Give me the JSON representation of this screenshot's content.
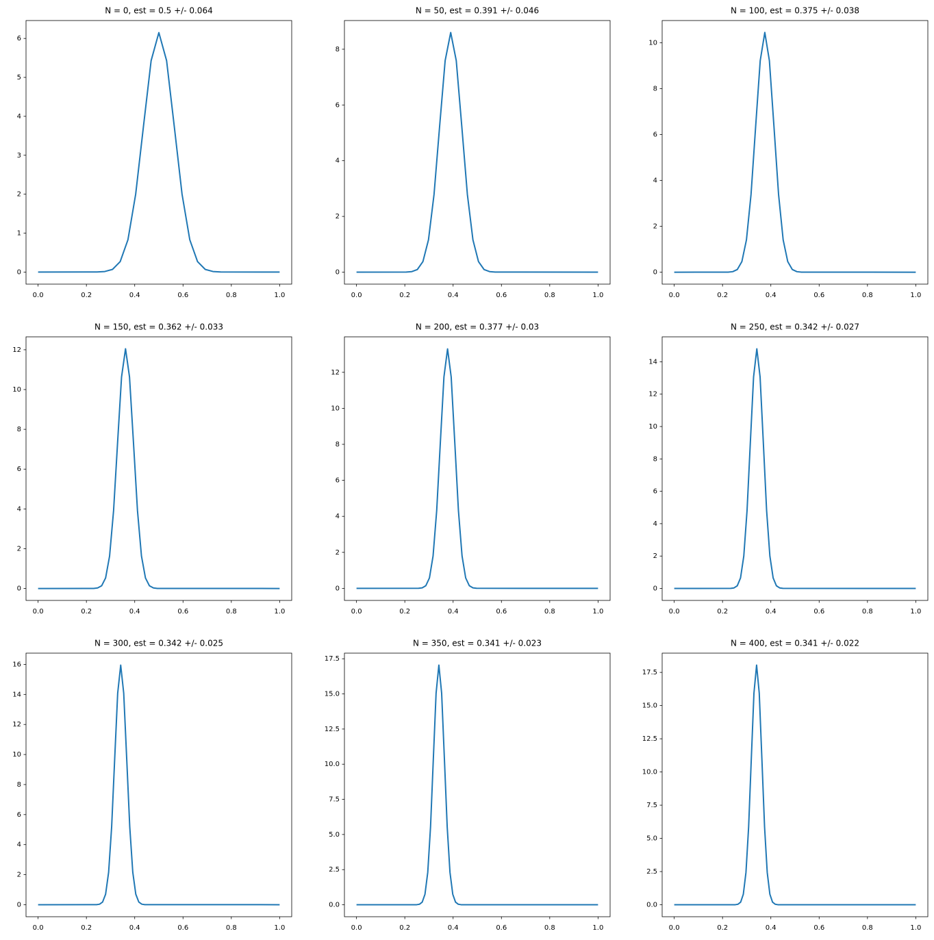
{
  "chart_data": [
    {
      "type": "line",
      "title": "N = 0, est = 0.5 +/- 0.064",
      "color": "#1f77b4",
      "x": [
        0,
        0.244,
        0.276,
        0.308,
        0.34,
        0.372,
        0.404,
        0.436,
        0.468,
        0.5,
        0.532,
        0.564,
        0.596,
        0.628,
        0.66,
        0.692,
        0.724,
        0.756,
        1
      ],
      "values": [
        0,
        0.002,
        0.014,
        0.068,
        0.27,
        0.83,
        2.0,
        3.73,
        5.43,
        6.15,
        5.43,
        3.73,
        2.0,
        0.83,
        0.27,
        0.068,
        0.014,
        0.002,
        0
      ],
      "xlim": [
        -0.05,
        1.05
      ],
      "ylim": [
        -0.31,
        6.46
      ],
      "xticks": [
        {
          "value": 0,
          "label": "0.0"
        },
        0.2,
        0.4,
        0.6,
        0.8,
        {
          "value": 1,
          "label": "1.0"
        }
      ],
      "yticks": [
        0,
        1,
        2,
        3,
        4,
        5,
        6
      ]
    },
    {
      "type": "line",
      "title": "N = 50, est = 0.391 +/- 0.046",
      "color": "#1f77b4",
      "x": [
        0,
        0.206,
        0.229,
        0.252,
        0.275,
        0.298,
        0.321,
        0.344,
        0.367,
        0.39,
        0.413,
        0.436,
        0.459,
        0.482,
        0.505,
        0.528,
        0.551,
        0.574,
        1
      ],
      "values": [
        0,
        0.003,
        0.019,
        0.095,
        0.38,
        1.16,
        2.79,
        5.22,
        7.59,
        8.6,
        7.59,
        5.22,
        2.79,
        1.16,
        0.38,
        0.095,
        0.019,
        0.003,
        0
      ],
      "xlim": [
        -0.05,
        1.05
      ],
      "ylim": [
        -0.43,
        9.03
      ],
      "xticks": [
        {
          "value": 0,
          "label": "0.0"
        },
        0.2,
        0.4,
        0.6,
        0.8,
        {
          "value": 1,
          "label": "1.0"
        }
      ],
      "yticks": [
        0,
        2,
        4,
        6,
        8
      ]
    },
    {
      "type": "line",
      "title": "N = 100, est = 0.375 +/- 0.038",
      "color": "#1f77b4",
      "x": [
        0,
        0.223,
        0.242,
        0.261,
        0.28,
        0.299,
        0.318,
        0.337,
        0.356,
        0.375,
        0.394,
        0.413,
        0.432,
        0.451,
        0.47,
        0.489,
        0.508,
        0.527,
        1
      ],
      "values": [
        0,
        0.003,
        0.023,
        0.116,
        0.46,
        1.41,
        3.39,
        6.34,
        9.22,
        10.45,
        9.22,
        6.34,
        3.39,
        1.41,
        0.46,
        0.116,
        0.023,
        0.003,
        0
      ],
      "xlim": [
        -0.05,
        1.05
      ],
      "ylim": [
        -0.52,
        10.97
      ],
      "xticks": [
        {
          "value": 0,
          "label": "0.0"
        },
        0.2,
        0.4,
        0.6,
        0.8,
        {
          "value": 1,
          "label": "1.0"
        }
      ],
      "yticks": [
        0,
        2,
        4,
        6,
        8,
        10
      ]
    },
    {
      "type": "line",
      "title": "N = 150, est = 0.362 +/- 0.033",
      "color": "#1f77b4",
      "x": [
        0,
        0.23,
        0.2465,
        0.263,
        0.2795,
        0.296,
        0.3125,
        0.329,
        0.3455,
        0.362,
        0.3785,
        0.395,
        0.4115,
        0.428,
        0.4445,
        0.461,
        0.4775,
        0.494,
        1
      ],
      "values": [
        0,
        0.004,
        0.027,
        0.134,
        0.53,
        1.63,
        3.91,
        7.31,
        10.63,
        12.05,
        10.63,
        7.31,
        3.91,
        1.63,
        0.53,
        0.134,
        0.027,
        0.004,
        0
      ],
      "xlim": [
        -0.05,
        1.05
      ],
      "ylim": [
        -0.6,
        12.65
      ],
      "xticks": [
        {
          "value": 0,
          "label": "0.0"
        },
        0.2,
        0.4,
        0.6,
        0.8,
        {
          "value": 1,
          "label": "1.0"
        }
      ],
      "yticks": [
        0,
        2,
        4,
        6,
        8,
        10,
        12
      ]
    },
    {
      "type": "line",
      "title": "N = 200, est = 0.377 +/- 0.03",
      "color": "#1f77b4",
      "x": [
        0,
        0.257,
        0.272,
        0.287,
        0.302,
        0.317,
        0.332,
        0.347,
        0.362,
        0.377,
        0.392,
        0.407,
        0.422,
        0.437,
        0.452,
        0.467,
        0.482,
        0.497,
        1
      ],
      "values": [
        0,
        0.004,
        0.029,
        0.148,
        0.58,
        1.8,
        4.32,
        8.07,
        11.74,
        13.3,
        11.74,
        8.07,
        4.32,
        1.8,
        0.58,
        0.148,
        0.029,
        0.004,
        0
      ],
      "xlim": [
        -0.05,
        1.05
      ],
      "ylim": [
        -0.67,
        13.97
      ],
      "xticks": [
        {
          "value": 0,
          "label": "0.0"
        },
        0.2,
        0.4,
        0.6,
        0.8,
        {
          "value": 1,
          "label": "1.0"
        }
      ],
      "yticks": [
        0,
        2,
        4,
        6,
        8,
        10,
        12
      ]
    },
    {
      "type": "line",
      "title": "N = 250, est = 0.342 +/- 0.027",
      "color": "#1f77b4",
      "x": [
        0,
        0.234,
        0.2475,
        0.261,
        0.2745,
        0.288,
        0.3015,
        0.315,
        0.3285,
        0.342,
        0.3555,
        0.369,
        0.3825,
        0.396,
        0.4095,
        0.423,
        0.4365,
        0.45,
        1
      ],
      "values": [
        0,
        0.004,
        0.033,
        0.164,
        0.65,
        2.0,
        4.81,
        8.98,
        13.06,
        14.8,
        13.06,
        8.98,
        4.81,
        2.0,
        0.65,
        0.164,
        0.033,
        0.004,
        0
      ],
      "xlim": [
        -0.05,
        1.05
      ],
      "ylim": [
        -0.74,
        15.54
      ],
      "xticks": [
        {
          "value": 0,
          "label": "0.0"
        },
        0.2,
        0.4,
        0.6,
        0.8,
        {
          "value": 1,
          "label": "1.0"
        }
      ],
      "yticks": [
        0,
        2,
        4,
        6,
        8,
        10,
        12,
        14
      ]
    },
    {
      "type": "line",
      "title": "N = 300, est = 0.342 +/- 0.025",
      "color": "#1f77b4",
      "x": [
        0,
        0.242,
        0.2545,
        0.267,
        0.2795,
        0.292,
        0.3045,
        0.317,
        0.3295,
        0.342,
        0.3545,
        0.367,
        0.3795,
        0.392,
        0.4045,
        0.417,
        0.4295,
        0.442,
        1
      ],
      "values": [
        0,
        0.005,
        0.035,
        0.177,
        0.7,
        2.16,
        5.18,
        9.67,
        14.08,
        15.95,
        14.08,
        9.67,
        5.18,
        2.16,
        0.7,
        0.177,
        0.035,
        0.005,
        0
      ],
      "xlim": [
        -0.05,
        1.05
      ],
      "ylim": [
        -0.8,
        16.75
      ],
      "xticks": [
        {
          "value": 0,
          "label": "0.0"
        },
        0.2,
        0.4,
        0.6,
        0.8,
        {
          "value": 1,
          "label": "1.0"
        }
      ],
      "yticks": [
        0,
        2,
        4,
        6,
        8,
        10,
        12,
        14,
        16
      ]
    },
    {
      "type": "line",
      "title": "N = 350, est = 0.341 +/- 0.023",
      "color": "#1f77b4",
      "x": [
        0,
        0.249,
        0.2605,
        0.272,
        0.2835,
        0.295,
        0.3065,
        0.318,
        0.3295,
        0.341,
        0.3525,
        0.364,
        0.3755,
        0.387,
        0.3985,
        0.41,
        0.4215,
        0.433,
        1
      ],
      "values": [
        0,
        0.005,
        0.038,
        0.189,
        0.75,
        2.31,
        5.54,
        10.34,
        15.05,
        17.05,
        15.05,
        10.34,
        5.54,
        2.31,
        0.75,
        0.189,
        0.038,
        0.005,
        0
      ],
      "xlim": [
        -0.05,
        1.05
      ],
      "ylim": [
        -0.85,
        17.9
      ],
      "xticks": [
        {
          "value": 0,
          "label": "0.0"
        },
        0.2,
        0.4,
        0.6,
        0.8,
        {
          "value": 1,
          "label": "1.0"
        }
      ],
      "yticks": [
        {
          "value": 0,
          "label": "0.0"
        },
        2.5,
        {
          "value": 5,
          "label": "5.0"
        },
        7.5,
        {
          "value": 10,
          "label": "10.0"
        },
        12.5,
        {
          "value": 15,
          "label": "15.0"
        },
        17.5
      ]
    },
    {
      "type": "line",
      "title": "N = 400, est = 0.341 +/- 0.022",
      "color": "#1f77b4",
      "x": [
        0,
        0.253,
        0.264,
        0.275,
        0.286,
        0.297,
        0.308,
        0.319,
        0.33,
        0.341,
        0.352,
        0.363,
        0.374,
        0.385,
        0.396,
        0.407,
        0.418,
        0.429,
        1
      ],
      "values": [
        0,
        0.005,
        0.04,
        0.2,
        0.79,
        2.44,
        5.86,
        10.95,
        15.93,
        18.05,
        15.93,
        10.95,
        5.86,
        2.44,
        0.79,
        0.2,
        0.04,
        0.005,
        0
      ],
      "xlim": [
        -0.05,
        1.05
      ],
      "ylim": [
        -0.9,
        18.95
      ],
      "xticks": [
        {
          "value": 0,
          "label": "0.0"
        },
        0.2,
        0.4,
        0.6,
        0.8,
        {
          "value": 1,
          "label": "1.0"
        }
      ],
      "yticks": [
        {
          "value": 0,
          "label": "0.0"
        },
        2.5,
        {
          "value": 5,
          "label": "5.0"
        },
        7.5,
        {
          "value": 10,
          "label": "10.0"
        },
        12.5,
        {
          "value": 15,
          "label": "15.0"
        },
        17.5
      ]
    }
  ]
}
